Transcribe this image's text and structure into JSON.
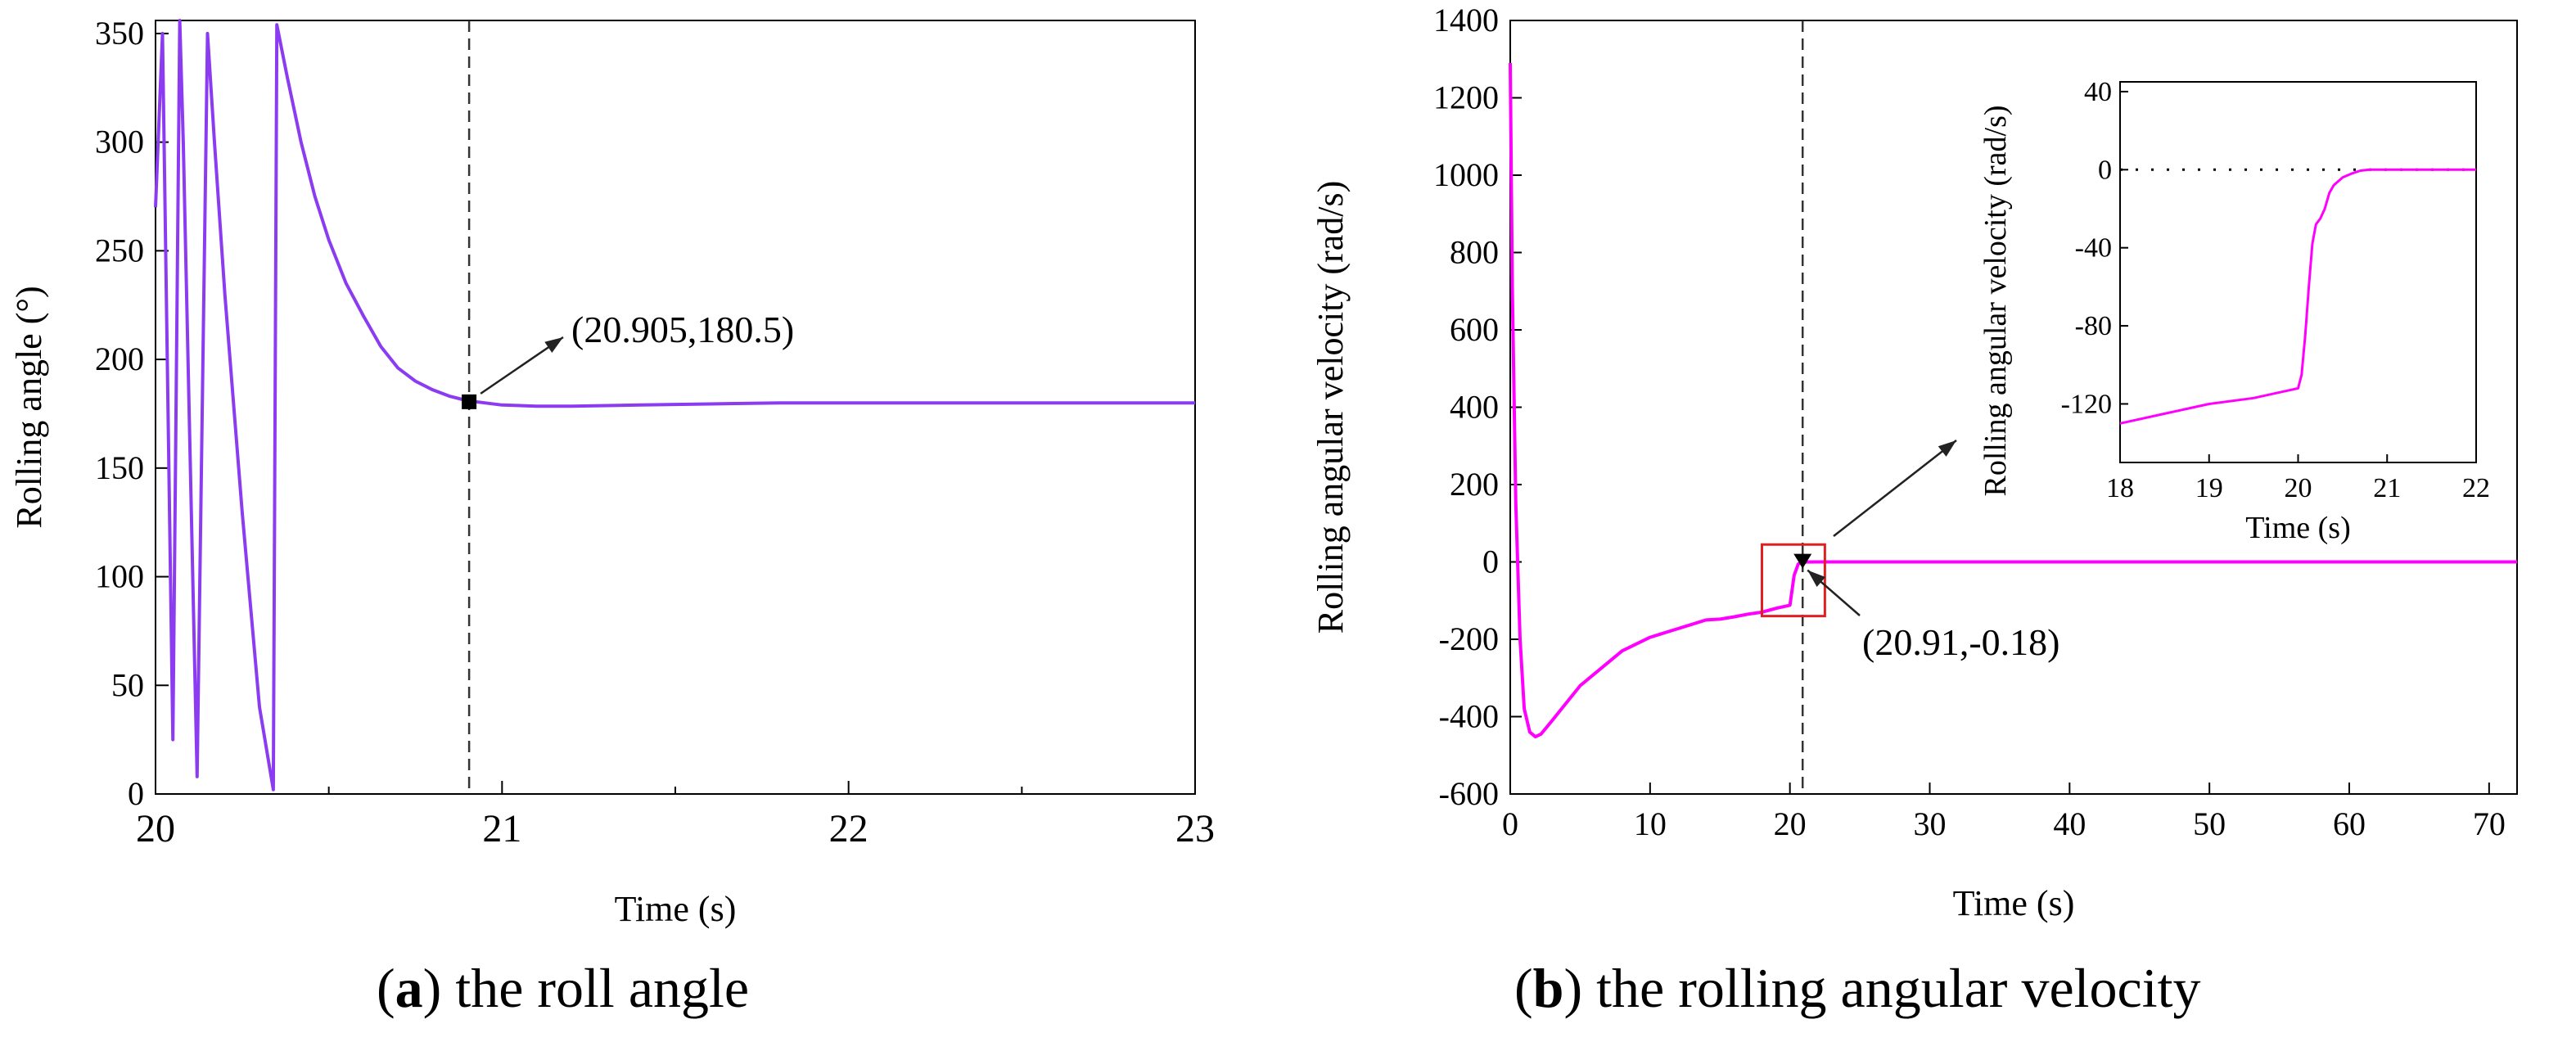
{
  "figure": {
    "caption_a": {
      "letter": "a",
      "text": " the roll angle"
    },
    "caption_b": {
      "letter": "b",
      "text": " the rolling angular velocity"
    }
  },
  "chart_data": [
    {
      "id": "a",
      "type": "line",
      "title": "",
      "xlabel": "Time (s)",
      "ylabel": "Rolling angle (°)",
      "xlim": [
        20,
        23
      ],
      "ylim": [
        0,
        356
      ],
      "xticks": [
        20,
        21,
        22,
        23
      ],
      "yticks": [
        0,
        50,
        100,
        150,
        200,
        250,
        300,
        350
      ],
      "color": "#8c3cf0",
      "series": [
        {
          "name": "roll angle",
          "x": [
            20.0,
            20.02,
            20.05,
            20.07,
            20.08,
            20.12,
            20.15,
            20.17,
            20.2,
            20.25,
            20.3,
            20.34,
            20.35,
            20.38,
            20.42,
            20.46,
            20.5,
            20.55,
            20.6,
            20.65,
            20.7,
            20.75,
            20.8,
            20.85,
            20.9,
            20.95,
            21.0,
            21.1,
            21.2,
            21.4,
            21.6,
            21.8,
            22.0,
            22.5,
            23.0
          ],
          "y": [
            270,
            350,
            25,
            356,
            300,
            8,
            350,
            300,
            230,
            130,
            40,
            2,
            354,
            330,
            300,
            275,
            255,
            235,
            220,
            206,
            196,
            190,
            186,
            183,
            181,
            180,
            179,
            178.5,
            178.5,
            179,
            179.5,
            180,
            180,
            180,
            180
          ]
        }
      ],
      "reference_line": {
        "x": 20.905,
        "style": "dashed"
      },
      "annotation": {
        "x": 20.905,
        "y": 180.5,
        "text": "(20.905,180.5)"
      }
    },
    {
      "id": "b",
      "type": "line",
      "title": "",
      "xlabel": "Time (s)",
      "ylabel": "Rolling angular velocity (rad/s)",
      "xlim": [
        0,
        72
      ],
      "ylim": [
        -600,
        1400
      ],
      "xticks": [
        0,
        10,
        20,
        30,
        40,
        50,
        60,
        70
      ],
      "yticks": [
        -600,
        -400,
        -200,
        0,
        200,
        400,
        600,
        800,
        1000,
        1200,
        1400
      ],
      "color": "#ff00ff",
      "series": [
        {
          "name": "angular velocity",
          "x": [
            0,
            0.15,
            0.4,
            0.7,
            1.0,
            1.4,
            1.8,
            2.2,
            3,
            5,
            8,
            10,
            14,
            15,
            16,
            17,
            18,
            19,
            20,
            20.3,
            20.6,
            20.91,
            22,
            30,
            72
          ],
          "y": [
            1290,
            700,
            150,
            -200,
            -380,
            -440,
            -452,
            -445,
            -410,
            -320,
            -230,
            -195,
            -150,
            -148,
            -142,
            -135,
            -130,
            -120,
            -112,
            -35,
            -5,
            -0.18,
            0,
            0,
            0
          ]
        }
      ],
      "reference_line": {
        "x": 20.91,
        "style": "dashed"
      },
      "annotation": {
        "x": 20.91,
        "y": -0.18,
        "text": "(20.91,-0.18)"
      },
      "zoom_box": {
        "x": [
          18,
          22.5
        ],
        "y": [
          -140,
          45
        ]
      },
      "inset": {
        "xlabel": "Time (s)",
        "ylabel": "Rolling angular velocity (rad/s)",
        "xlim": [
          18,
          22
        ],
        "ylim": [
          -150,
          45
        ],
        "xticks": [
          18,
          19,
          20,
          21,
          22
        ],
        "yticks": [
          -120,
          -80,
          -40,
          0,
          40
        ],
        "x": [
          18,
          18.5,
          19,
          19.5,
          20,
          20.04,
          20.08,
          20.12,
          20.16,
          20.2,
          20.25,
          20.3,
          20.35,
          20.4,
          20.5,
          20.6,
          20.7,
          20.8,
          21,
          22
        ],
        "y": [
          -130,
          -125,
          -120,
          -117,
          -112,
          -105,
          -85,
          -60,
          -38,
          -28,
          -25,
          -20,
          -12,
          -8,
          -4,
          -2,
          -0.5,
          0,
          0,
          0
        ],
        "zero_line": true
      }
    }
  ]
}
